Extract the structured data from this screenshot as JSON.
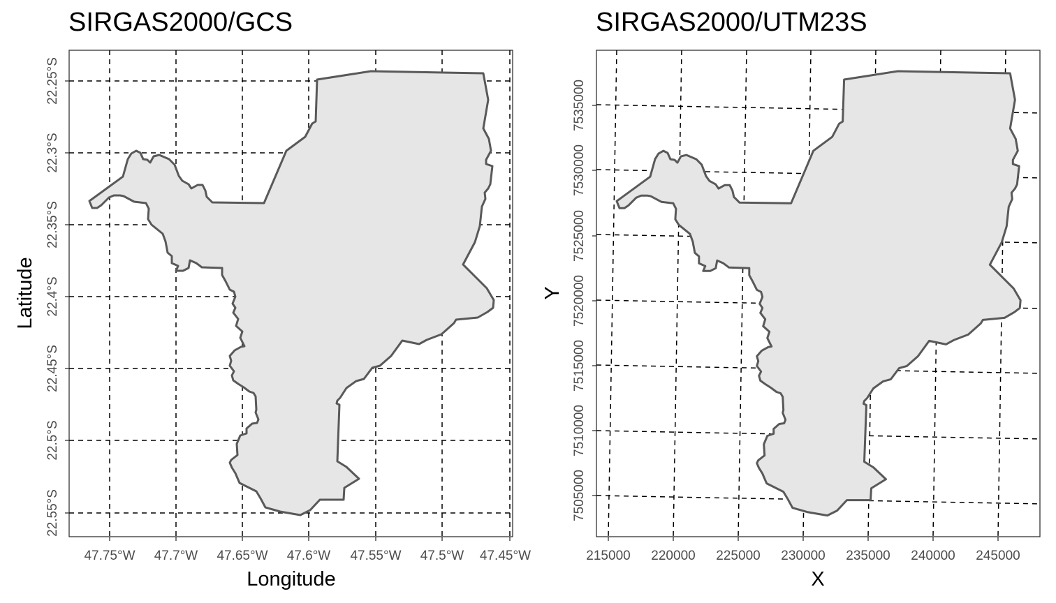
{
  "colors": {
    "fill": "#e6e6e6",
    "outline": "#595959",
    "grid": "#000000",
    "text": "#4d4d4d"
  },
  "panels": [
    {
      "id": "gcs",
      "title": "SIRGAS2000/GCS",
      "xlabel": "Longitude",
      "ylabel": "Latitude",
      "x_ticks": [
        "47.75°W",
        "47.7°W",
        "47.65°W",
        "47.6°W",
        "47.55°W",
        "47.5°W",
        "47.45°W"
      ],
      "y_ticks": [
        "22.25°S",
        "22.3°S",
        "22.35°S",
        "22.4°S",
        "22.45°S",
        "22.5°S",
        "22.55°S"
      ]
    },
    {
      "id": "utm",
      "title": "SIRGAS2000/UTM23S",
      "xlabel": "X",
      "ylabel": "Y",
      "x_ticks": [
        "215000",
        "220000",
        "225000",
        "230000",
        "235000",
        "240000",
        "245000"
      ],
      "y_ticks": [
        "7505000",
        "7510000",
        "7515000",
        "7520000",
        "7525000",
        "7530000",
        "7535000"
      ]
    }
  ]
}
